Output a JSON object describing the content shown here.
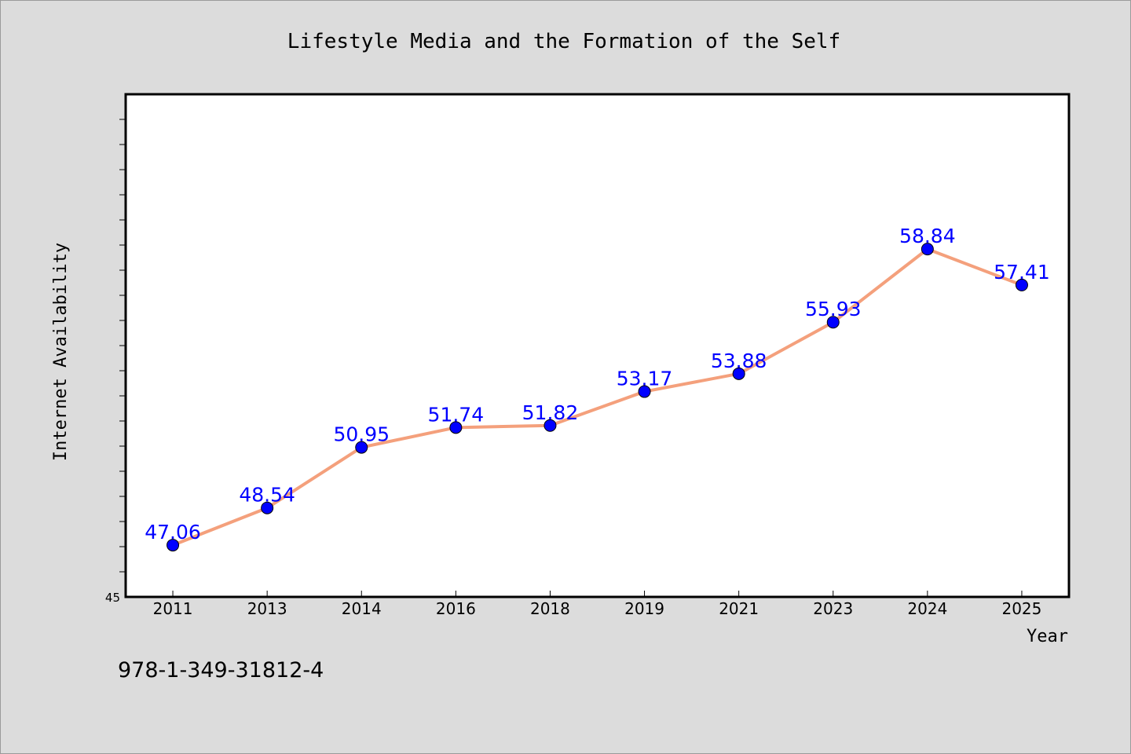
{
  "chart_data": {
    "type": "line",
    "title": "Lifestyle Media and the Formation of the Self",
    "xlabel": "Year",
    "ylabel": "Internet Availability",
    "categories": [
      "2011",
      "2013",
      "2014",
      "2016",
      "2018",
      "2019",
      "2021",
      "2023",
      "2024",
      "2025"
    ],
    "series": [
      {
        "values": [
          47.06,
          48.54,
          50.95,
          51.74,
          51.82,
          53.17,
          53.88,
          55.93,
          58.84,
          57.41
        ],
        "labels": [
          "47.06",
          "48.54",
          "50.95",
          "51.74",
          "51.82",
          "53.17",
          "53.88",
          "55.93",
          "58.84",
          "57.41"
        ],
        "line_color": "#f4a07c",
        "marker_color": "#0000ff"
      }
    ],
    "ylim": [
      45,
      65
    ],
    "y_tick_label": "45",
    "grid": false,
    "background": "#ffffff",
    "outer_background": "#dcdcdc"
  },
  "footer": {
    "isbn": "978-1-349-31812-4"
  }
}
